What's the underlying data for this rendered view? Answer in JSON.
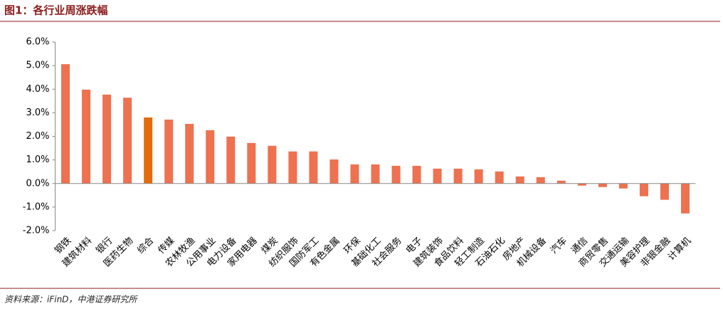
{
  "chart_data": {
    "type": "bar",
    "title": "图1：各行业周涨跌幅",
    "source": "资料来源：iFinD，中港证券研究所",
    "categories": [
      "钢铁",
      "建筑材料",
      "银行",
      "医药生物",
      "综合",
      "传媒",
      "农林牧渔",
      "公用事业",
      "电力设备",
      "家用电器",
      "煤炭",
      "纺织服饰",
      "国防军工",
      "有色金属",
      "环保",
      "基础化工",
      "社会服务",
      "电子",
      "建筑装饰",
      "食品饮料",
      "轻工制造",
      "石油石化",
      "房地产",
      "机械设备",
      "汽车",
      "通信",
      "商贸零售",
      "交通运输",
      "美容护理",
      "非银金融",
      "计算机"
    ],
    "values": [
      5.06,
      3.98,
      3.77,
      3.64,
      2.8,
      2.71,
      2.53,
      2.26,
      1.99,
      1.72,
      1.6,
      1.36,
      1.36,
      1.02,
      0.81,
      0.81,
      0.75,
      0.75,
      0.63,
      0.63,
      0.6,
      0.51,
      0.3,
      0.27,
      0.12,
      -0.09,
      -0.15,
      -0.21,
      -0.54,
      -0.69,
      -1.27
    ],
    "colors": [
      "#ee7150",
      "#ee7150",
      "#ee7150",
      "#ee7150",
      "#e36c0a",
      "#ee7150",
      "#ee7150",
      "#ee7150",
      "#ee7150",
      "#ee7150",
      "#ee7150",
      "#ee7150",
      "#ee7150",
      "#ee7150",
      "#ee7150",
      "#ee7150",
      "#ee7150",
      "#ee7150",
      "#ee7150",
      "#ee7150",
      "#ee7150",
      "#ee7150",
      "#ee7150",
      "#ee7150",
      "#ee7150",
      "#ee7150",
      "#ee7150",
      "#ee7150",
      "#ee7150",
      "#ee7150",
      "#ee7150"
    ],
    "ylim": [
      -2,
      6
    ],
    "yticks": [
      {
        "value": -2,
        "label": "-2.0%"
      },
      {
        "value": -1,
        "label": "-1.0%"
      },
      {
        "value": 0,
        "label": "0.0%"
      },
      {
        "value": 1,
        "label": "1.0%"
      },
      {
        "value": 2,
        "label": "2.0%"
      },
      {
        "value": 3,
        "label": "3.0%"
      },
      {
        "value": 4,
        "label": "4.0%"
      },
      {
        "value": 5,
        "label": "5.0%"
      },
      {
        "value": 6,
        "label": "6.0%"
      }
    ],
    "grid": false
  }
}
